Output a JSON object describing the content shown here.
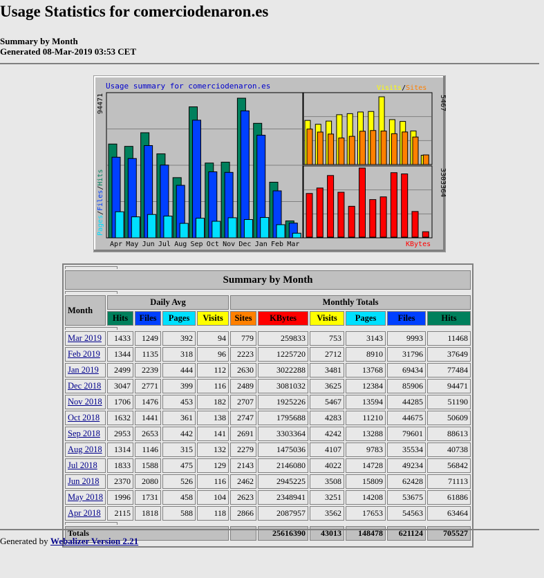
{
  "page": {
    "title": "Usage Statistics for comerciodenaron.es",
    "subtitle": "Summary by Month",
    "generated": "Generated 08-Mar-2019 03:53 CET"
  },
  "chart_data": {
    "type": "bar",
    "title": "Usage summary for comerciodenaron.es",
    "categories": [
      "Apr",
      "May",
      "Jun",
      "Jul",
      "Aug",
      "Sep",
      "Oct",
      "Nov",
      "Dec",
      "Jan",
      "Feb",
      "Mar"
    ],
    "panels": [
      {
        "name": "Pages / Files / Hits",
        "ylabel": "Pages / Files / Hits",
        "ymax_label": "94471",
        "ylim": [
          0,
          94471
        ],
        "series": [
          {
            "name": "Hits",
            "color": "#00805c",
            "values": [
              63464,
              61886,
              71113,
              56842,
              40738,
              88613,
              50609,
              51190,
              94471,
              77484,
              37649,
              11468
            ]
          },
          {
            "name": "Files",
            "color": "#0040ff",
            "values": [
              54563,
              53675,
              62428,
              49234,
              35534,
              79601,
              44675,
              44285,
              85906,
              69434,
              31796,
              9993
            ]
          },
          {
            "name": "Pages",
            "color": "#00e0ff",
            "values": [
              17653,
              14208,
              15809,
              14728,
              9783,
              13288,
              11210,
              13594,
              12384,
              13768,
              8910,
              3143
            ]
          }
        ]
      },
      {
        "name": "Visits / Sites",
        "ymax_label": "5467",
        "ylim": [
          0,
          5467
        ],
        "series": [
          {
            "name": "Visits",
            "color": "#ffff00",
            "values": [
              3562,
              3251,
              3508,
              4022,
              4107,
              4242,
              4283,
              5467,
              3625,
              3481,
              2712,
              753
            ]
          },
          {
            "name": "Sites",
            "color": "#ff8000",
            "values": [
              2866,
              2623,
              2462,
              2143,
              2279,
              2691,
              2747,
              2707,
              2489,
              2630,
              2223,
              779
            ]
          }
        ]
      },
      {
        "name": "KBytes",
        "ymax_label": "3303364",
        "ylim": [
          0,
          3303364
        ],
        "series": [
          {
            "name": "KBytes",
            "color": "#ff0000",
            "values": [
              2087957,
              2348941,
              2945225,
              2146080,
              1475036,
              3303364,
              1795688,
              1925226,
              3081032,
              3022288,
              1225720,
              259833
            ]
          }
        ]
      }
    ]
  },
  "chart_labels": {
    "left_axis_max": "94471",
    "left_axis_title": [
      "Pages",
      "/",
      "Files",
      "/",
      "Hits"
    ],
    "visits_label": "Visits",
    "slash": "/",
    "sites_label": "Sites",
    "visits_max": "5467",
    "kbytes_max": "3303364",
    "kbytes_label": "KBytes"
  },
  "colors": {
    "hits": "#00805c",
    "files": "#0040ff",
    "pages": "#00e0ff",
    "visits": "#ffff00",
    "sites": "#ff8000",
    "kbytes": "#ff0000"
  },
  "table": {
    "caption": "Summary by Month",
    "month_header": "Month",
    "daily_avg_header": "Daily Avg",
    "monthly_totals_header": "Monthly Totals",
    "daily_cols": [
      "Hits",
      "Files",
      "Pages",
      "Visits"
    ],
    "monthly_cols": [
      "Sites",
      "KBytes",
      "Visits",
      "Pages",
      "Files",
      "Hits"
    ],
    "rows": [
      {
        "month": "Mar 2019",
        "d_hits": "1433",
        "d_files": "1249",
        "d_pages": "392",
        "d_visits": "94",
        "sites": "779",
        "kbytes": "259833",
        "visits": "753",
        "pages": "3143",
        "files": "9993",
        "hits": "11468"
      },
      {
        "month": "Feb 2019",
        "d_hits": "1344",
        "d_files": "1135",
        "d_pages": "318",
        "d_visits": "96",
        "sites": "2223",
        "kbytes": "1225720",
        "visits": "2712",
        "pages": "8910",
        "files": "31796",
        "hits": "37649"
      },
      {
        "month": "Jan 2019",
        "d_hits": "2499",
        "d_files": "2239",
        "d_pages": "444",
        "d_visits": "112",
        "sites": "2630",
        "kbytes": "3022288",
        "visits": "3481",
        "pages": "13768",
        "files": "69434",
        "hits": "77484"
      },
      {
        "month": "Dec 2018",
        "d_hits": "3047",
        "d_files": "2771",
        "d_pages": "399",
        "d_visits": "116",
        "sites": "2489",
        "kbytes": "3081032",
        "visits": "3625",
        "pages": "12384",
        "files": "85906",
        "hits": "94471"
      },
      {
        "month": "Nov 2018",
        "d_hits": "1706",
        "d_files": "1476",
        "d_pages": "453",
        "d_visits": "182",
        "sites": "2707",
        "kbytes": "1925226",
        "visits": "5467",
        "pages": "13594",
        "files": "44285",
        "hits": "51190"
      },
      {
        "month": "Oct 2018",
        "d_hits": "1632",
        "d_files": "1441",
        "d_pages": "361",
        "d_visits": "138",
        "sites": "2747",
        "kbytes": "1795688",
        "visits": "4283",
        "pages": "11210",
        "files": "44675",
        "hits": "50609"
      },
      {
        "month": "Sep 2018",
        "d_hits": "2953",
        "d_files": "2653",
        "d_pages": "442",
        "d_visits": "141",
        "sites": "2691",
        "kbytes": "3303364",
        "visits": "4242",
        "pages": "13288",
        "files": "79601",
        "hits": "88613"
      },
      {
        "month": "Aug 2018",
        "d_hits": "1314",
        "d_files": "1146",
        "d_pages": "315",
        "d_visits": "132",
        "sites": "2279",
        "kbytes": "1475036",
        "visits": "4107",
        "pages": "9783",
        "files": "35534",
        "hits": "40738"
      },
      {
        "month": "Jul 2018",
        "d_hits": "1833",
        "d_files": "1588",
        "d_pages": "475",
        "d_visits": "129",
        "sites": "2143",
        "kbytes": "2146080",
        "visits": "4022",
        "pages": "14728",
        "files": "49234",
        "hits": "56842"
      },
      {
        "month": "Jun 2018",
        "d_hits": "2370",
        "d_files": "2080",
        "d_pages": "526",
        "d_visits": "116",
        "sites": "2462",
        "kbytes": "2945225",
        "visits": "3508",
        "pages": "15809",
        "files": "62428",
        "hits": "71113"
      },
      {
        "month": "May 2018",
        "d_hits": "1996",
        "d_files": "1731",
        "d_pages": "458",
        "d_visits": "104",
        "sites": "2623",
        "kbytes": "2348941",
        "visits": "3251",
        "pages": "14208",
        "files": "53675",
        "hits": "61886"
      },
      {
        "month": "Apr 2018",
        "d_hits": "2115",
        "d_files": "1818",
        "d_pages": "588",
        "d_visits": "118",
        "sites": "2866",
        "kbytes": "2087957",
        "visits": "3562",
        "pages": "17653",
        "files": "54563",
        "hits": "63464"
      }
    ],
    "totals": {
      "label": "Totals",
      "kbytes": "25616390",
      "visits": "43013",
      "pages": "148478",
      "files": "621124",
      "hits": "705527"
    }
  },
  "footer": {
    "prefix": "Generated by ",
    "link": "Webalizer Version 2.21"
  }
}
